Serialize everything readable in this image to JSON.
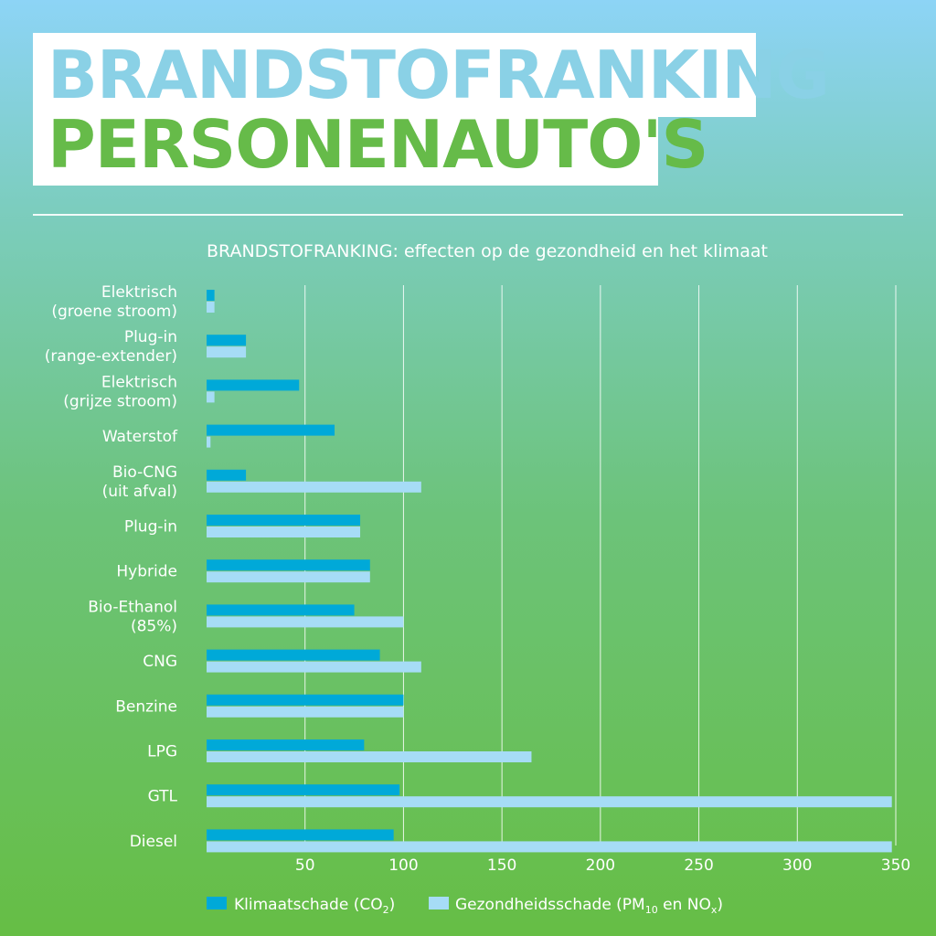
{
  "header": {
    "title_line1": "BRANDSTOFRANKING",
    "title_line2": "PERSONENAUTO'S"
  },
  "colors": {
    "klimaat": "#00a9d8",
    "gezondheid": "#a6dcf6",
    "title_line1": "#8ad1e6",
    "title_line2": "#66bb49"
  },
  "chart_data": {
    "type": "bar",
    "orientation": "horizontal",
    "title": "BRANDSTOFRANKING: effecten op de gezondheid en het klimaat",
    "categories": [
      [
        "Elektrisch",
        "(groene stroom)"
      ],
      [
        "Plug-in",
        "(range-extender)"
      ],
      [
        "Elektrisch",
        "(grijze stroom)"
      ],
      [
        "Waterstof"
      ],
      [
        "Bio-CNG",
        "(uit afval)"
      ],
      [
        "Plug-in"
      ],
      [
        "Hybride"
      ],
      [
        "Bio-Ethanol",
        "(85%)"
      ],
      [
        "CNG"
      ],
      [
        "Benzine"
      ],
      [
        "LPG"
      ],
      [
        "GTL"
      ],
      [
        "Diesel"
      ]
    ],
    "series": [
      {
        "name": "Klimaatschade (CO2)",
        "values": [
          4,
          20,
          47,
          65,
          20,
          78,
          83,
          75,
          88,
          100,
          80,
          98,
          95
        ]
      },
      {
        "name": "Gezondheidsschade (PM10 en NOx)",
        "values": [
          4,
          20,
          4,
          2,
          109,
          78,
          83,
          100,
          109,
          100,
          165,
          348,
          348
        ]
      }
    ],
    "xlim": [
      0,
      350
    ],
    "xticks": [
      50,
      100,
      150,
      200,
      250,
      300,
      350
    ],
    "grid": true,
    "legend_position": "bottom"
  }
}
